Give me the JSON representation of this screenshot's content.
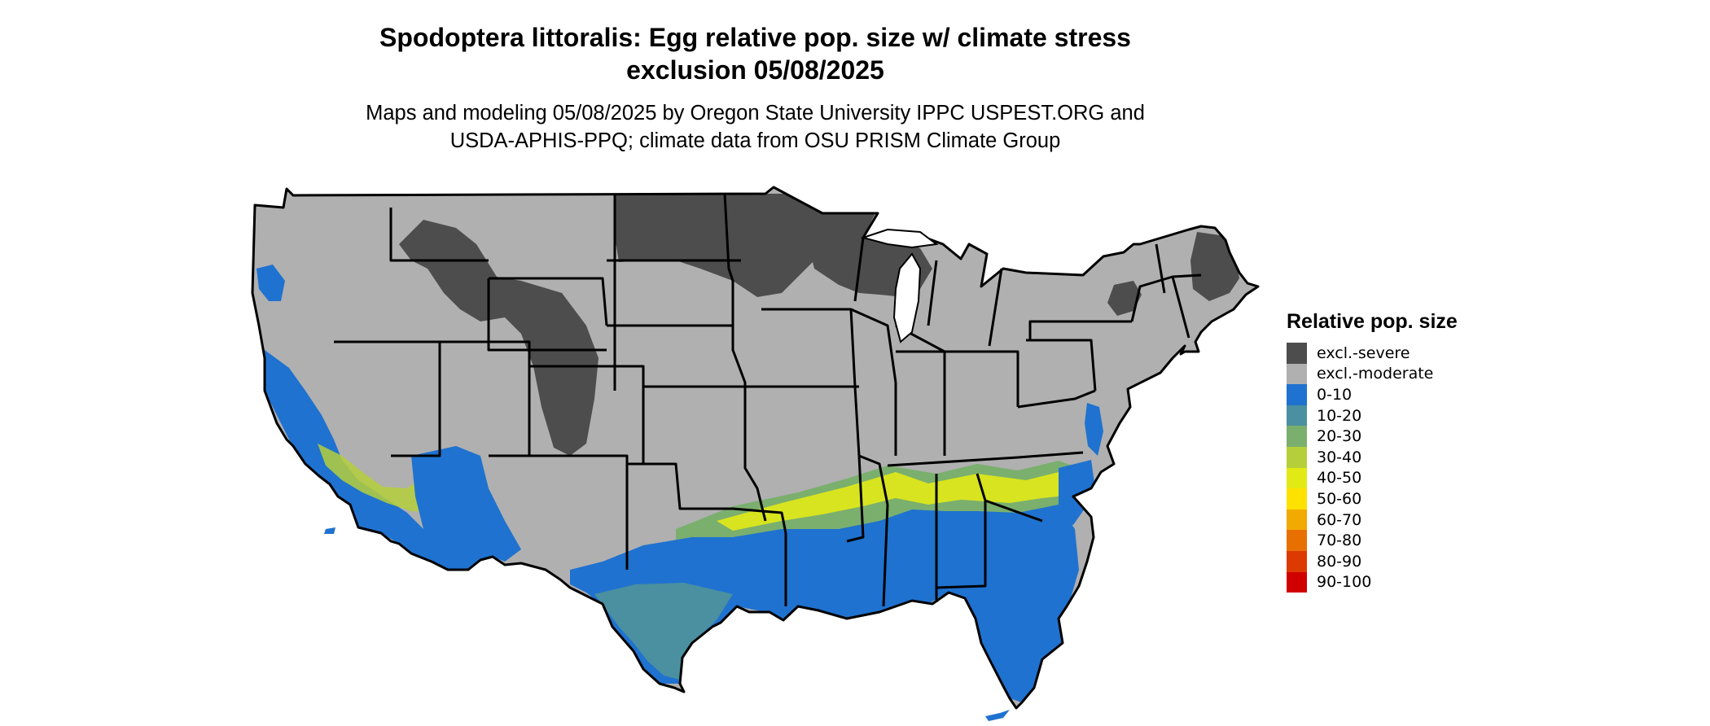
{
  "map": {
    "title_line1": "Spodoptera littoralis: Egg relative pop. size w/ climate stress",
    "title_line2": "exclusion 05/08/2025",
    "subtitle_line1": "Maps and modeling 05/08/2025 by Oregon State University IPPC USPEST.ORG and",
    "subtitle_line2": "USDA-APHIS-PPQ; climate data from OSU PRISM Climate Group",
    "region": "Conterminous United States"
  },
  "legend": {
    "title": "Relative pop. size",
    "items": [
      {
        "label": "excl.-severe",
        "color": "#4d4d4d"
      },
      {
        "label": "excl.-moderate",
        "color": "#b0b0b0"
      },
      {
        "label": "0-10",
        "color": "#1f72cf"
      },
      {
        "label": "10-20",
        "color": "#4a90a0"
      },
      {
        "label": "20-30",
        "color": "#7aaf6e"
      },
      {
        "label": "30-40",
        "color": "#b5cf3b"
      },
      {
        "label": "40-50",
        "color": "#e2ea16"
      },
      {
        "label": "50-60",
        "color": "#fde100"
      },
      {
        "label": "60-70",
        "color": "#f2a900"
      },
      {
        "label": "70-80",
        "color": "#e87000"
      },
      {
        "label": "80-90",
        "color": "#dc3a00"
      },
      {
        "label": "90-100",
        "color": "#d10000"
      }
    ]
  }
}
